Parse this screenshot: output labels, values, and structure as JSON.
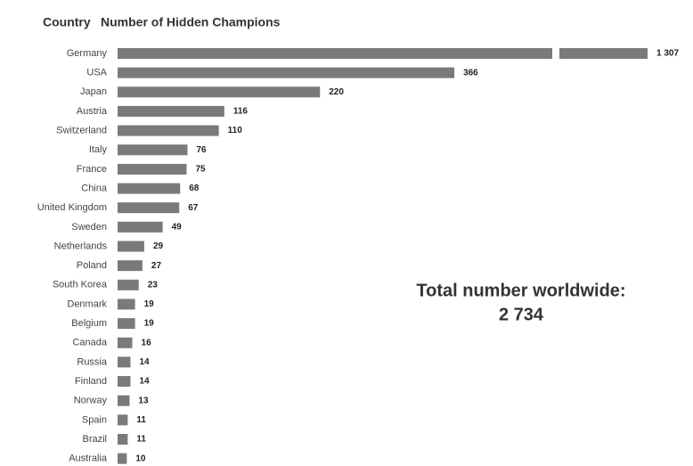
{
  "chart_data": {
    "type": "hbar",
    "title": "Number of Hidden Champions",
    "y_label": "Country",
    "categories": [
      "Germany",
      "USA",
      "Japan",
      "Austria",
      "Switzerland",
      "Italy",
      "France",
      "China",
      "United Kingdom",
      "Sweden",
      "Netherlands",
      "Poland",
      "South Korea",
      "Denmark",
      "Belgium",
      "Canada",
      "Russia",
      "Finland",
      "Norway",
      "Spain",
      "Brazil",
      "Australia"
    ],
    "values": [
      1307,
      366,
      220,
      116,
      110,
      76,
      75,
      68,
      67,
      49,
      29,
      27,
      23,
      19,
      19,
      16,
      14,
      14,
      13,
      11,
      11,
      10
    ],
    "value_labels": [
      "1 307",
      "366",
      "220",
      "116",
      "110",
      "76",
      "75",
      "68",
      "67",
      "49",
      "29",
      "27",
      "23",
      "19",
      "19",
      "16",
      "14",
      "14",
      "13",
      "11",
      "11",
      "10"
    ],
    "color": "#7a7a7a",
    "axis_break": true,
    "annotations": [
      "Total number worldwide:",
      "2 734"
    ]
  }
}
